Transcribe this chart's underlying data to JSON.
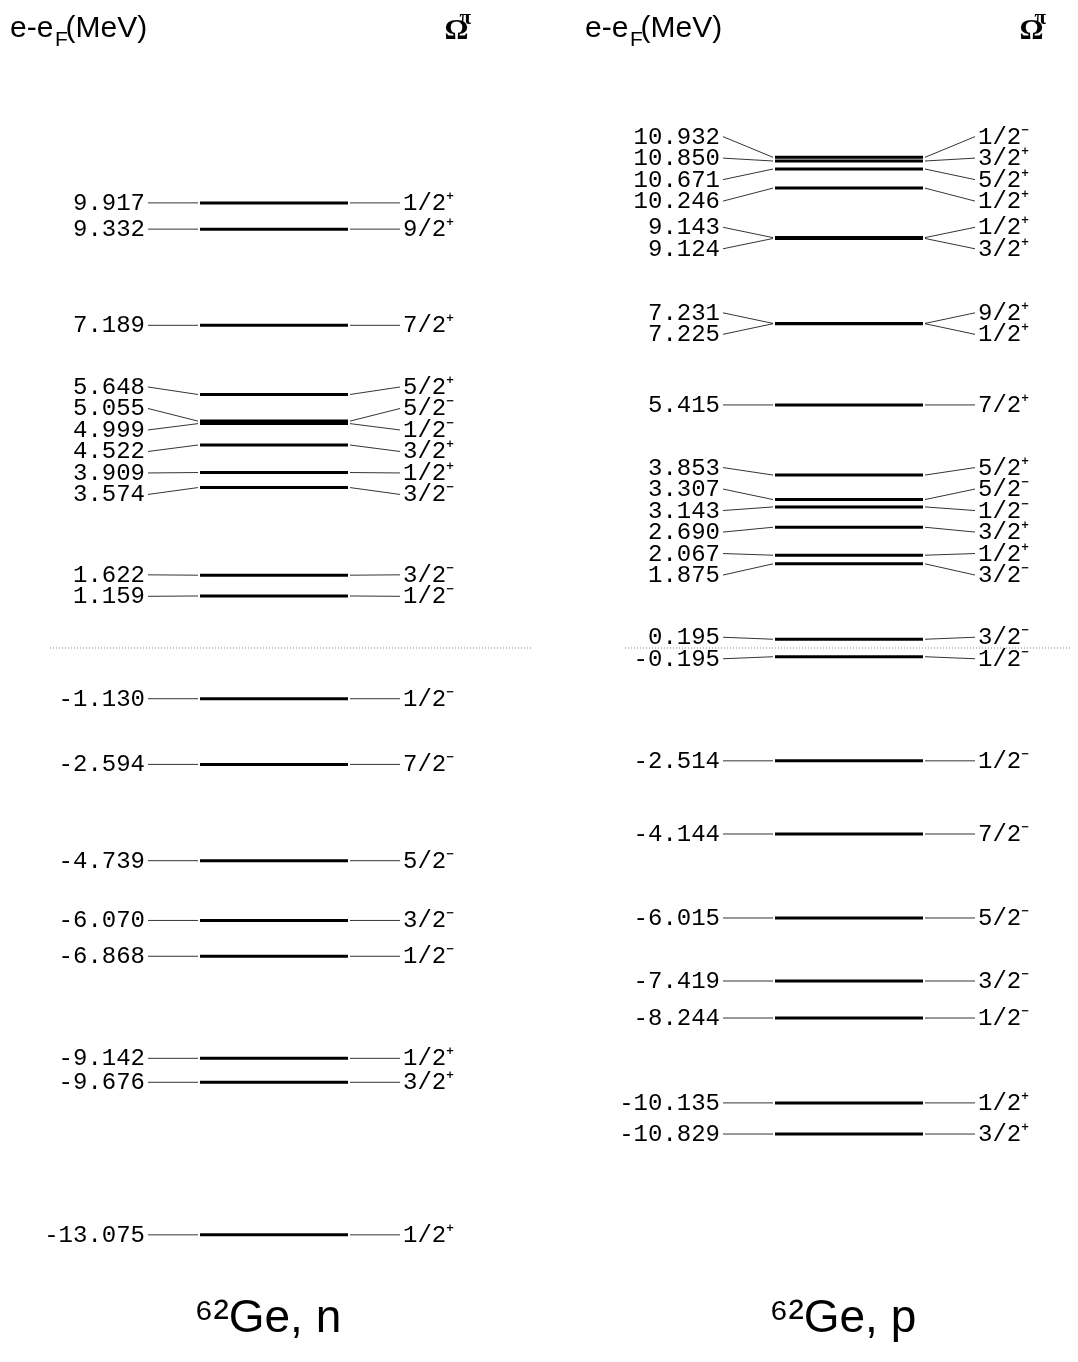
{
  "chart_data": [
    {
      "type": "other",
      "title": "⁶²Ge, n",
      "ylabel": "e-e$_{F}$(MeV)",
      "y2label": "Ω$^{π}$",
      "values": [
        9.917,
        9.332,
        7.189,
        5.648,
        5.055,
        4.999,
        4.522,
        3.909,
        3.574,
        1.622,
        1.159,
        -1.13,
        -2.594,
        -4.739,
        -6.07,
        -6.868,
        -9.142,
        -9.676,
        -13.075
      ],
      "value_labels": [
        "9.917",
        "9.332",
        "7.189",
        "5.648",
        "5.055",
        "4.999",
        "4.522",
        "3.909",
        "3.574",
        "1.622",
        "1.159",
        "-1.130",
        "-2.594",
        "-4.739",
        "-6.070",
        "-6.868",
        "-9.142",
        "-9.676",
        "-13.075"
      ],
      "categories": [
        "1/2⁺",
        "9/2⁺",
        "7/2⁺",
        "5/2⁺",
        "5/2⁻",
        "1/2⁻",
        "3/2⁺",
        "1/2⁺",
        "3/2⁻",
        "3/2⁻",
        "1/2⁻",
        "1/2⁻",
        "7/2⁻",
        "5/2⁻",
        "3/2⁻",
        "1/2⁻",
        "1/2⁺",
        "3/2⁺",
        "1/2⁺"
      ],
      "ref_lines": [
        {
          "axis": "y",
          "line_style": "dotted",
          "color": "#888888"
        }
      ]
    },
    {
      "type": "other",
      "title": "⁶²Ge, p",
      "ylabel": "e-e$_{F}$(MeV)",
      "y2label": "Ω$^{π}$",
      "values": [
        10.932,
        10.85,
        10.671,
        10.246,
        9.143,
        9.124,
        7.231,
        7.225,
        5.415,
        3.853,
        3.307,
        3.143,
        2.69,
        2.067,
        1.875,
        0.195,
        -0.195,
        -2.514,
        -4.144,
        -6.015,
        -7.419,
        -8.244,
        -10.135,
        -10.829
      ],
      "value_labels": [
        "10.932",
        "10.850",
        "10.671",
        "10.246",
        "9.143",
        "9.124",
        "7.231",
        "7.225",
        "5.415",
        "3.853",
        "3.307",
        "3.143",
        "2.690",
        "2.067",
        "1.875",
        "0.195",
        "-0.195",
        "-2.514",
        "-4.144",
        "-6.015",
        "-7.419",
        "-8.244",
        "-10.135",
        "-10.829"
      ],
      "categories": [
        "1/2⁻",
        "3/2⁺",
        "5/2⁺",
        "1/2⁺",
        "1/2⁺",
        "3/2⁺",
        "9/2⁺",
        "1/2⁺",
        "7/2⁺",
        "5/2⁺",
        "5/2⁻",
        "1/2⁻",
        "3/2⁺",
        "1/2⁺",
        "3/2⁻",
        "3/2⁻",
        "1/2⁻",
        "1/2⁻",
        "7/2⁻",
        "5/2⁻",
        "3/2⁻",
        "1/2⁻",
        "1/2⁺",
        "3/2⁺"
      ],
      "ref_lines": [
        {
          "axis": "y",
          "line_style": "dotted",
          "color": "#888888"
        }
      ]
    }
  ]
}
